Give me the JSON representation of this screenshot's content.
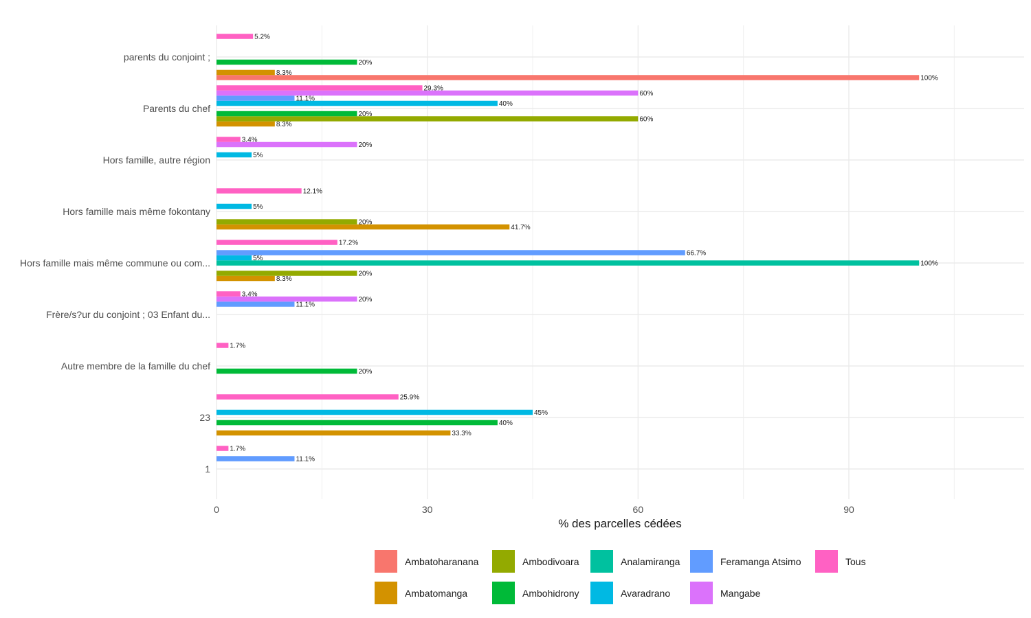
{
  "chart_data": {
    "type": "bar",
    "orientation": "horizontal",
    "title": "",
    "xlabel": "% des parcelles cédées",
    "ylabel": "",
    "xlim": [
      0,
      115
    ],
    "x_ticks": [
      0,
      30,
      60,
      90
    ],
    "x_minor_ticks": [
      15,
      45,
      75,
      105
    ],
    "grid": true,
    "legend_position": "bottom",
    "categories": [
      "parents du conjoint ;",
      "Parents du chef",
      "Hors famille, autre région",
      "Hors famille mais même fokontany",
      "Hors famille mais même commune ou com...",
      "Frère/s?ur du conjoint ; 03 Enfant du...",
      "Autre membre de la famille du chef",
      "23",
      "1"
    ],
    "series": [
      {
        "name": "Ambatoharanana",
        "color": "#F8766D",
        "values": [
          100,
          null,
          null,
          null,
          null,
          null,
          null,
          null,
          null
        ],
        "labels": [
          "100%",
          null,
          null,
          null,
          null,
          null,
          null,
          null,
          null
        ]
      },
      {
        "name": "Ambatomanga",
        "color": "#D39200",
        "values": [
          8.3,
          8.3,
          null,
          41.7,
          8.3,
          null,
          null,
          33.3,
          null
        ],
        "labels": [
          "8.3%",
          "8.3%",
          null,
          "41.7%",
          "8.3%",
          null,
          null,
          "33.3%",
          null
        ]
      },
      {
        "name": "Ambodivoara",
        "color": "#93AA00",
        "values": [
          null,
          60,
          null,
          20,
          20,
          null,
          null,
          null,
          null
        ],
        "labels": [
          null,
          "60%",
          null,
          "20%",
          "20%",
          null,
          null,
          null,
          null
        ]
      },
      {
        "name": "Ambohidrony",
        "color": "#00BA38",
        "values": [
          20,
          20,
          null,
          null,
          null,
          null,
          20,
          40,
          null
        ],
        "labels": [
          "20%",
          "20%",
          null,
          null,
          null,
          null,
          "20%",
          "40%",
          null
        ]
      },
      {
        "name": "Analamiranga",
        "color": "#00C19F",
        "values": [
          null,
          null,
          null,
          null,
          100,
          null,
          null,
          null,
          null
        ],
        "labels": [
          null,
          null,
          null,
          null,
          "100%",
          null,
          null,
          null,
          null
        ]
      },
      {
        "name": "Avaradrano",
        "color": "#00B9E3",
        "values": [
          null,
          40,
          5,
          5,
          5,
          null,
          null,
          45,
          null
        ],
        "labels": [
          null,
          "40%",
          "5%",
          "5%",
          "5%",
          null,
          null,
          "45%",
          null
        ]
      },
      {
        "name": "Feramanga Atsimo",
        "color": "#619CFF",
        "values": [
          null,
          11.1,
          null,
          null,
          66.7,
          11.1,
          null,
          null,
          11.1
        ],
        "labels": [
          null,
          "11.1%",
          null,
          null,
          "66.7%",
          "11.1%",
          null,
          null,
          "11.1%"
        ]
      },
      {
        "name": "Mangabe",
        "color": "#DB72FB",
        "values": [
          null,
          60,
          20,
          null,
          null,
          20,
          null,
          null,
          null
        ],
        "labels": [
          null,
          "60%",
          "20%",
          null,
          null,
          "20%",
          null,
          null,
          null
        ]
      },
      {
        "name": "Tous",
        "color": "#FF61C3",
        "values": [
          5.2,
          29.3,
          3.4,
          12.1,
          17.2,
          3.4,
          1.7,
          25.9,
          1.7
        ],
        "labels": [
          "5.2%",
          "29.3%",
          "3.4%",
          "12.1%",
          "17.2%",
          "3.4%",
          "1.7%",
          "25.9%",
          "1.7%"
        ]
      }
    ],
    "legend": {
      "rows": [
        [
          "Ambatoharanana",
          "Ambodivoara",
          "Analamiranga",
          "Feramanga Atsimo",
          "Tous"
        ],
        [
          "Ambatomanga",
          "Ambohidrony",
          "Avaradrano",
          "Mangabe"
        ]
      ]
    }
  }
}
